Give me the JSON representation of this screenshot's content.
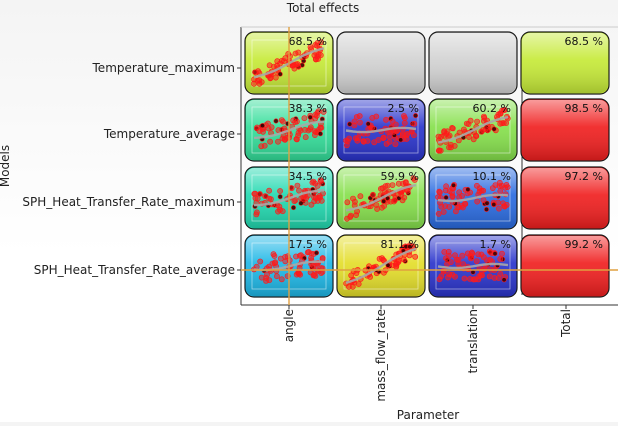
{
  "chart_data": {
    "type": "heatmap",
    "title": "Total effects",
    "xlabel": "Parameter",
    "ylabel": "Models",
    "models": [
      "Temperature_maximum",
      "Temperature_average",
      "SPH_Heat_Transfer_Rate_maximum",
      "SPH_Heat_Transfer_Rate_average"
    ],
    "parameters": [
      "angle",
      "mass_flow_rate",
      "translation"
    ],
    "total_column_label": "Total",
    "cells": [
      [
        {
          "value": 68.5,
          "label": "68.5 %",
          "color": "#c6ea38"
        },
        {
          "value": null,
          "label": "",
          "color": "#d2d2d2"
        },
        {
          "value": null,
          "label": "",
          "color": "#d2d2d2"
        }
      ],
      [
        {
          "value": 38.3,
          "label": "38.3 %",
          "color": "#33de9a"
        },
        {
          "value": 2.5,
          "label": "2.5 %",
          "color": "#2a34cc"
        },
        {
          "value": 60.2,
          "label": "60.2 %",
          "color": "#86e04c"
        }
      ],
      [
        {
          "value": 34.5,
          "label": "34.5 %",
          "color": "#22d9b0"
        },
        {
          "value": 59.9,
          "label": "59.9 %",
          "color": "#86e04c"
        },
        {
          "value": 10.1,
          "label": "10.1 %",
          "color": "#2a6be0"
        }
      ],
      [
        {
          "value": 17.5,
          "label": "17.5 %",
          "color": "#1eb7e6"
        },
        {
          "value": 81.1,
          "label": "81.1 %",
          "color": "#e4de2a"
        },
        {
          "value": 1.7,
          "label": "1.7 %",
          "color": "#2a34cc"
        }
      ]
    ],
    "totals": [
      {
        "value": 68.5,
        "label": "68.5 %",
        "color": "#c6ea38"
      },
      {
        "value": 98.5,
        "label": "98.5 %",
        "color": "#f02020"
      },
      {
        "value": 97.2,
        "label": "97.2 %",
        "color": "#f02020"
      },
      {
        "value": 99.2,
        "label": "99.2 %",
        "color": "#f02020"
      }
    ],
    "scatter_color": "#ff1a1a",
    "trend_color": "#a8a8a8",
    "crosshair_color": "#e0a040"
  }
}
